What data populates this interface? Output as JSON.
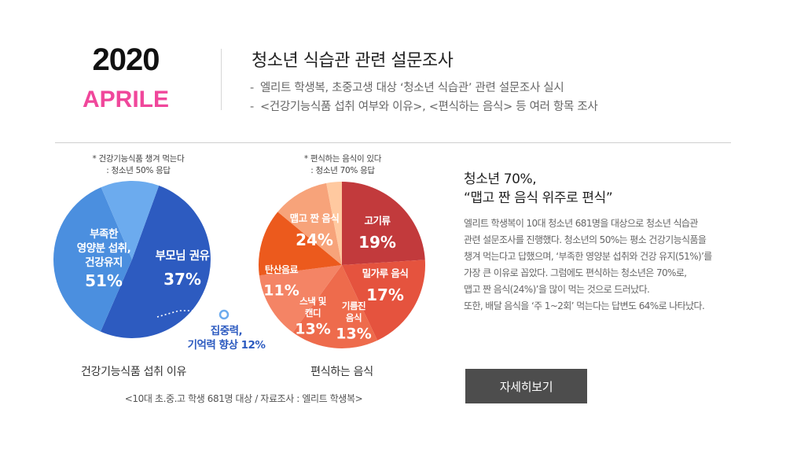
{
  "header": {
    "year": "2020",
    "month": "APRILE",
    "title": "청소년 식습관 관련 설문조사",
    "bullets": [
      "엘리트 학생복, 초중고생 대상 ‘청소년 식습관’ 관련 설문조사 실시",
      "<건강기능식품 섭취 여부와 이유>, <편식하는 음식> 등 여러 항목 조사"
    ],
    "bullet_marker": "-"
  },
  "chart_data": [
    {
      "type": "pie",
      "title": "건강기능식품 섭취 이유",
      "note": [
        "* 건강기능식품 챙겨 먹는다",
        ": 청소년 50% 응답"
      ],
      "slices": [
        {
          "label": [
            "부족한",
            "영양분 섭취,",
            "건강유지"
          ],
          "value": 51,
          "value_label": "51%",
          "color": "#2d5bc0"
        },
        {
          "label": [
            "부모님 권유"
          ],
          "value": 37,
          "value_label": "37%",
          "color": "#4b8fdf"
        },
        {
          "label": [
            "집중력,",
            "기억력 향상 12%"
          ],
          "value": 12,
          "value_label": "",
          "color": "#6cabee"
        }
      ]
    },
    {
      "type": "pie",
      "title": "편식하는 음식",
      "note": [
        "* 편식하는 음식이 있다",
        ": 청소년 70% 응답"
      ],
      "slices": [
        {
          "label": [
            "맵고 짠 음식"
          ],
          "value": 24,
          "value_label": "24%",
          "color": "#c23a3c"
        },
        {
          "label": [
            "고기류"
          ],
          "value": 19,
          "value_label": "19%",
          "color": "#e5533e"
        },
        {
          "label": [
            "밀가루 음식"
          ],
          "value": 17,
          "value_label": "17%",
          "color": "#ee6b4c"
        },
        {
          "label": [
            "기름진",
            "음식"
          ],
          "value": 13,
          "value_label": "13%",
          "color": "#f48465"
        },
        {
          "label": [
            "스낵 및",
            "캔디"
          ],
          "value": 13,
          "value_label": "13%",
          "color": "#ec5a1d"
        },
        {
          "label": [
            "탄산음료"
          ],
          "value": 11,
          "value_label": "11%",
          "color": "#f7a37a"
        },
        {
          "label": [],
          "value": 3,
          "value_label": "",
          "color": "#ffc9a0"
        }
      ]
    }
  ],
  "footer": {
    "source": "<10대 초.중.고 학생 681명 대상 / 자료조사 : 엘리트 학생복>"
  },
  "summary": {
    "headline": [
      "청소년 70%,",
      "“맵고 짠 음식 위주로 편식”"
    ],
    "body": [
      "엘리트 학생복이 10대 청소년 681명을 대상으로 청소년 식습관",
      "관련 설문조사를 진행했다. 청소년의 50%는 평소 건강기능식품을",
      "챙겨 먹는다고 답했으며, ‘부족한 영양분 섭취와 건강 유지(51%)’를",
      "가장 큰 이유로 꼽았다. 그럼에도 편식하는 청소년은 70%로,",
      "맵고 짠 음식(24%)’을 많이 먹는 것으로 드러났다.",
      "또한, 배달 음식을 ‘주 1~2회’ 먹는다는 답변도 64%로 나타났다."
    ],
    "button_label": "자세히보기"
  }
}
